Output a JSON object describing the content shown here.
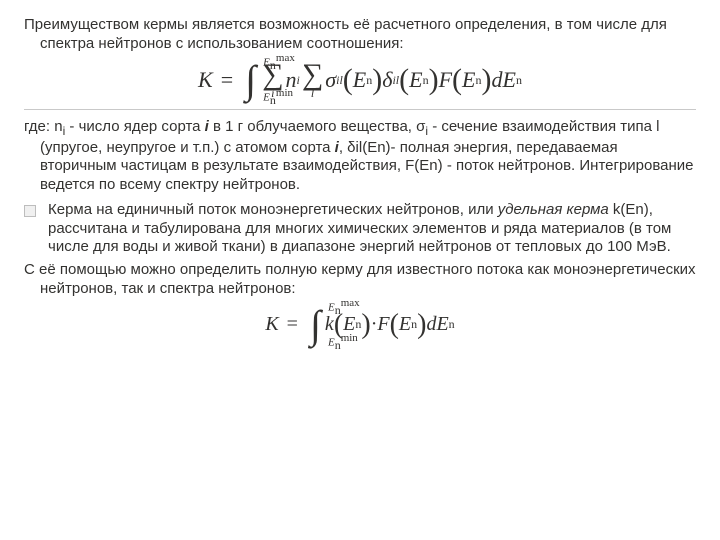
{
  "p1": "Преимуществом кермы является возможность её расчетного определения, в том числе для спектра нейтронов с использованием соотношения:",
  "p2_prefix": "где: n",
  "p2_mid1": " - число ядер сорта ",
  "p2_i1": "i",
  "p2_mid2": " в 1 г облучаемого вещества, σ",
  "p2_mid3": " - сечение взаимодействия типа l (упругое, неупругое и т.п.) с атомом сорта ",
  "p2_i2": "i",
  "p2_mid4": ", δil(En)- полная энергия, передаваемая вторичным частицам в результате взаимодействия, F(En) - поток нейтронов. Интегрирование ведется по всему спектру нейтронов.",
  "p3_a": "Керма на единичный поток моноэнергетических нейтронов, или ",
  "p3_em": "удельная керма",
  "p3_b": " k(En), рассчитана и табулирована для многих химических элементов и ряда материалов (в том числе для воды и живой ткани) в диапазоне энергий нейтронов от тепловых до 100 МэВ.",
  "p4": "С её помощью можно определить полную керму для известного потока как моноэнергетических нейтронов, так и спектра нейтронов:",
  "eq1": {
    "K": "K",
    "eq": "=",
    "int_top": "E",
    "int_top_sub": "n",
    "int_top_sup": "max",
    "int_bot": "E",
    "int_bot_sub": "n",
    "int_bot_sup": "min",
    "sum1_under": "i",
    "n": "n",
    "ni": "i",
    "sum2_under": "l",
    "sigma": "σ",
    "il": "il",
    "En": "E",
    "En_sub": "n",
    "delta": "δ",
    "F": "F",
    "dE": "dE"
  },
  "eq2": {
    "K": "K",
    "eq": "=",
    "k": "k",
    "F": "F",
    "dE": "dE",
    "En": "E",
    "En_sub": "n"
  },
  "sub_i": "i"
}
